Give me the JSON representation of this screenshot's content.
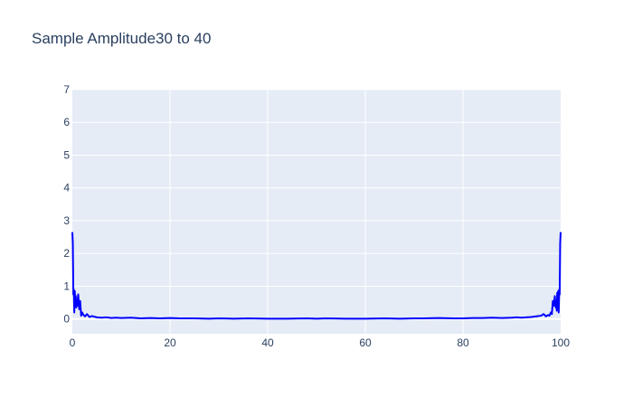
{
  "chart_data": {
    "type": "line",
    "title": "Sample Amplitude30 to 40",
    "xlabel": "",
    "ylabel": "",
    "xlim": [
      0,
      100
    ],
    "ylim": [
      -0.45,
      7
    ],
    "x_ticks": [
      0,
      20,
      40,
      60,
      80,
      100
    ],
    "y_ticks": [
      0,
      1,
      2,
      3,
      4,
      5,
      6,
      7
    ],
    "grid": true,
    "colors": {
      "line": "#0000ff",
      "plot_bg": "#e5ecf6",
      "grid": "#ffffff",
      "axis_text": "#2a3f5f"
    },
    "series": [
      {
        "x": [
          0,
          0.1,
          0.2,
          0.3,
          0.4,
          0.5,
          0.6,
          0.7,
          0.8,
          0.9,
          1.0,
          1.2,
          1.4,
          1.6,
          1.8,
          2.0,
          2.3,
          2.6,
          3.0,
          3.5,
          4,
          5,
          6,
          7,
          8,
          9,
          10,
          12,
          14,
          16,
          18,
          20,
          22,
          25,
          28,
          30,
          33,
          36,
          40,
          44,
          48,
          50,
          52,
          56,
          60,
          64,
          67,
          70,
          72,
          75,
          78,
          80,
          82,
          84,
          86,
          88,
          90,
          91,
          92,
          93,
          94,
          95,
          96,
          96.5,
          97,
          97.4,
          97.7,
          98.0,
          98.2,
          98.4,
          98.6,
          98.8,
          99.0,
          99.1,
          99.2,
          99.3,
          99.4,
          99.5,
          99.6,
          99.7,
          99.8,
          99.9,
          100
        ],
        "y": [
          2.65,
          2.3,
          0.75,
          0.9,
          0.2,
          0.85,
          0.5,
          0.7,
          0.35,
          0.55,
          0.4,
          0.75,
          0.3,
          0.55,
          0.1,
          0.2,
          0.12,
          0.08,
          0.15,
          0.06,
          0.09,
          0.05,
          0.04,
          0.05,
          0.03,
          0.04,
          0.03,
          0.04,
          0.02,
          0.03,
          0.02,
          0.03,
          0.02,
          0.02,
          0.01,
          0.02,
          0.01,
          0.02,
          0.01,
          0.01,
          0.02,
          0.01,
          0.02,
          0.01,
          0.01,
          0.02,
          0.01,
          0.02,
          0.02,
          0.03,
          0.02,
          0.02,
          0.03,
          0.03,
          0.04,
          0.03,
          0.04,
          0.05,
          0.04,
          0.05,
          0.06,
          0.08,
          0.1,
          0.15,
          0.08,
          0.12,
          0.1,
          0.2,
          0.15,
          0.55,
          0.4,
          0.7,
          0.35,
          0.55,
          0.25,
          0.8,
          0.45,
          0.85,
          0.2,
          0.9,
          0.75,
          2.3,
          2.65
        ]
      }
    ]
  }
}
